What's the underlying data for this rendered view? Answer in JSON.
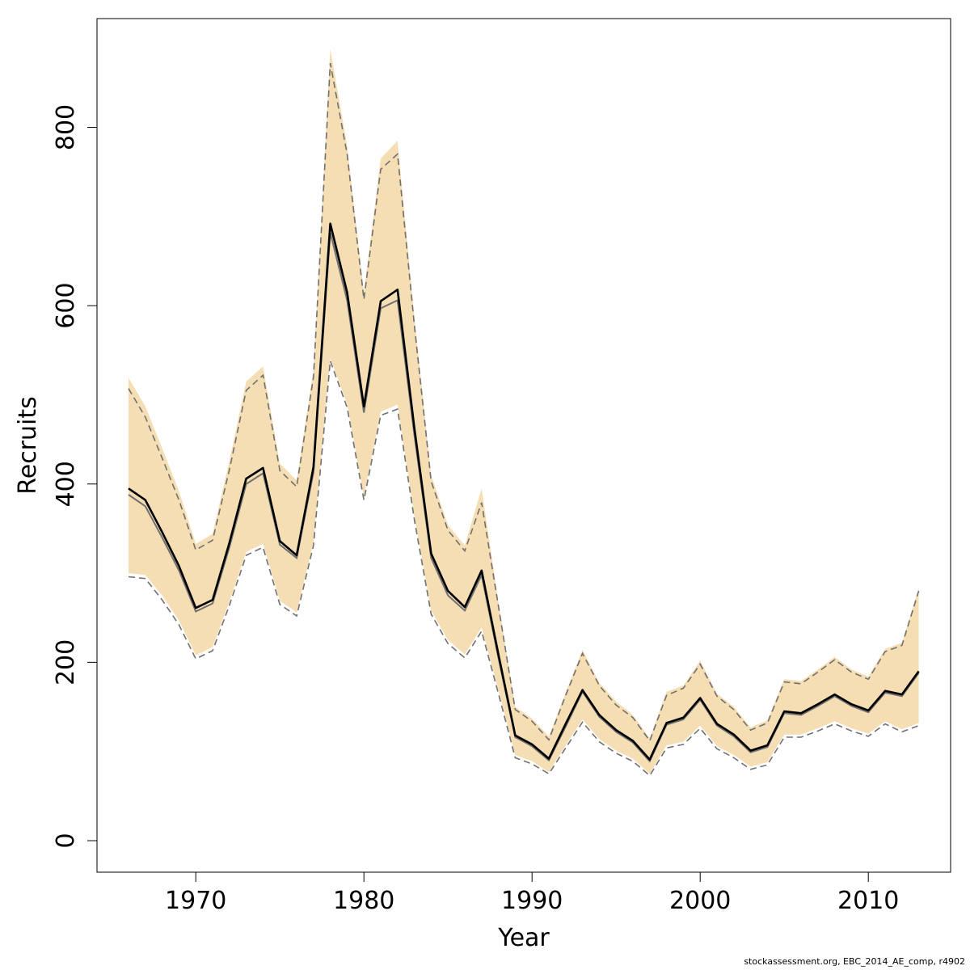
{
  "chart_data": {
    "type": "line",
    "title": "",
    "xlabel": "Year",
    "ylabel": "Recruits",
    "xlim": [
      1964.7,
      1915.0
    ],
    "ylim": [
      -35,
      910
    ],
    "x_ticks": [
      1970,
      1980,
      1990,
      2000,
      2010
    ],
    "y_ticks": [
      0,
      200,
      400,
      600,
      800
    ],
    "grid": false,
    "legend": "none",
    "colors": {
      "band_fill": "#f5deb3",
      "bound_line": "#707070",
      "median_line": "#000000",
      "mean_line": "#707070"
    },
    "x": [
      1966,
      1967,
      1968,
      1969,
      1970,
      1971,
      1972,
      1973,
      1974,
      1975,
      1976,
      1977,
      1978,
      1979,
      1980,
      1981,
      1982,
      1983,
      1984,
      1985,
      1986,
      1987,
      1988,
      1989,
      1990,
      1991,
      1992,
      1993,
      1994,
      1995,
      1996,
      1997,
      1998,
      1999,
      2000,
      2001,
      2002,
      2003,
      2004,
      2005,
      2006,
      2007,
      2008,
      2009,
      2010,
      2011,
      2012,
      2013
    ],
    "series": [
      {
        "role": "median",
        "values": [
          395,
          382,
          346,
          308,
          261,
          270,
          334,
          406,
          418,
          336,
          320,
          419,
          692,
          615,
          487,
          605,
          618,
          463,
          322,
          280,
          262,
          303,
          209,
          118,
          108,
          92,
          131,
          169,
          141,
          124,
          112,
          91,
          132,
          138,
          160,
          131,
          119,
          101,
          107,
          145,
          143,
          153,
          164,
          153,
          146,
          168,
          164,
          190
        ]
      },
      {
        "role": "mean",
        "values": [
          388,
          375,
          340,
          303,
          257,
          266,
          329,
          400,
          412,
          332,
          317,
          413,
          682,
          606,
          480,
          597,
          606,
          455,
          317,
          275,
          258,
          298,
          205,
          116,
          106,
          90,
          128,
          167,
          139,
          122,
          110,
          89,
          130,
          136,
          158,
          129,
          117,
          99,
          105,
          143,
          141,
          151,
          162,
          151,
          144,
          166,
          162,
          188
        ]
      },
      {
        "role": "upper_bound",
        "values": [
          507,
          475,
          429,
          382,
          326,
          337,
          416,
          505,
          522,
          415,
          397,
          520,
          872,
          770,
          607,
          753,
          770,
          578,
          403,
          348,
          325,
          379,
          263,
          147,
          134,
          113,
          163,
          210,
          174,
          152,
          138,
          112,
          163,
          171,
          198,
          162,
          147,
          124,
          132,
          178,
          176,
          189,
          203,
          189,
          181,
          212,
          219,
          280
        ]
      },
      {
        "role": "lower_bound",
        "values": [
          296,
          294,
          270,
          242,
          204,
          213,
          264,
          320,
          329,
          265,
          252,
          331,
          538,
          486,
          382,
          477,
          484,
          360,
          254,
          221,
          205,
          235,
          165,
          93,
          86,
          75,
          104,
          133,
          111,
          98,
          89,
          73,
          104,
          108,
          126,
          103,
          93,
          80,
          85,
          116,
          116,
          123,
          131,
          123,
          117,
          131,
          122,
          129
        ]
      },
      {
        "role": "band_upper",
        "values": [
          519,
          487,
          440,
          392,
          333,
          344,
          426,
          515,
          532,
          423,
          404,
          528,
          888,
          780,
          615,
          765,
          785,
          588,
          410,
          354,
          331,
          395,
          268,
          150,
          137,
          117,
          166,
          214,
          177,
          156,
          141,
          115,
          167,
          174,
          202,
          165,
          150,
          127,
          135,
          181,
          179,
          192,
          206,
          192,
          184,
          215,
          222,
          284
        ]
      },
      {
        "role": "band_lower",
        "values": [
          300,
          298,
          275,
          247,
          208,
          217,
          268,
          324,
          333,
          269,
          256,
          335,
          541,
          490,
          386,
          481,
          489,
          364,
          258,
          225,
          209,
          239,
          169,
          96,
          89,
          77,
          107,
          136,
          114,
          101,
          92,
          75,
          107,
          111,
          129,
          106,
          96,
          83,
          88,
          119,
          119,
          126,
          134,
          126,
          120,
          134,
          125,
          132
        ]
      }
    ]
  },
  "footnote": "stockassessment.org, EBC_2014_AE_comp, r4902"
}
